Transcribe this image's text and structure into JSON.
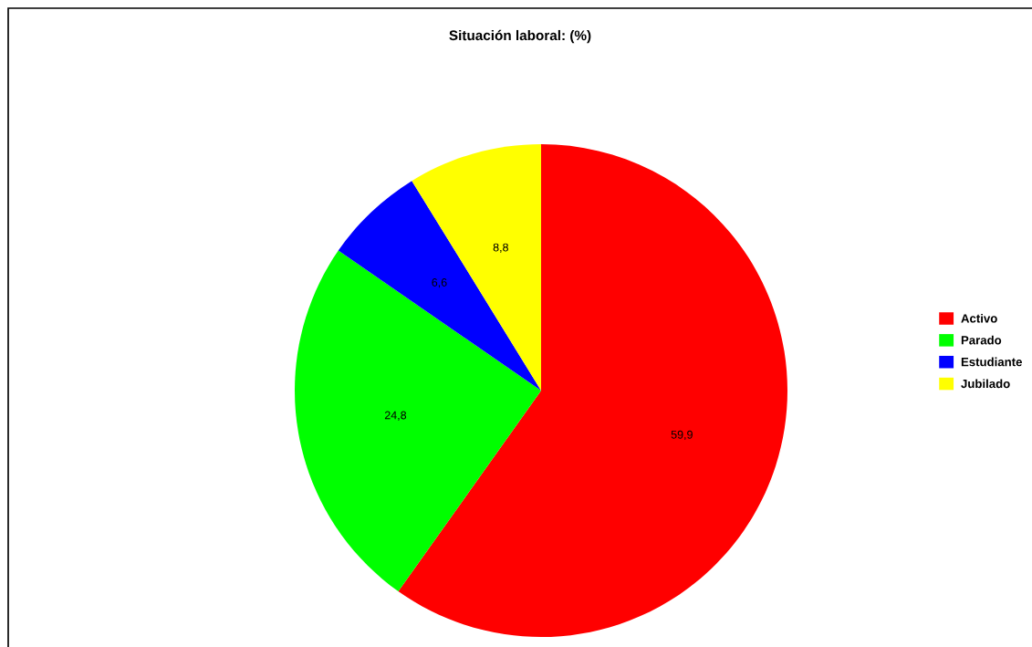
{
  "chart_data": {
    "type": "pie",
    "title": "Situación laboral: (%)",
    "categories": [
      "Activo",
      "Parado",
      "Estudiante",
      "Jubilado"
    ],
    "values": [
      59.9,
      24.8,
      6.6,
      8.8
    ],
    "value_labels": [
      "59,9",
      "24,8",
      "6,6",
      "8,8"
    ],
    "colors": [
      "#ff0000",
      "#00ff00",
      "#0000ff",
      "#ffff00"
    ],
    "legend": "right"
  }
}
